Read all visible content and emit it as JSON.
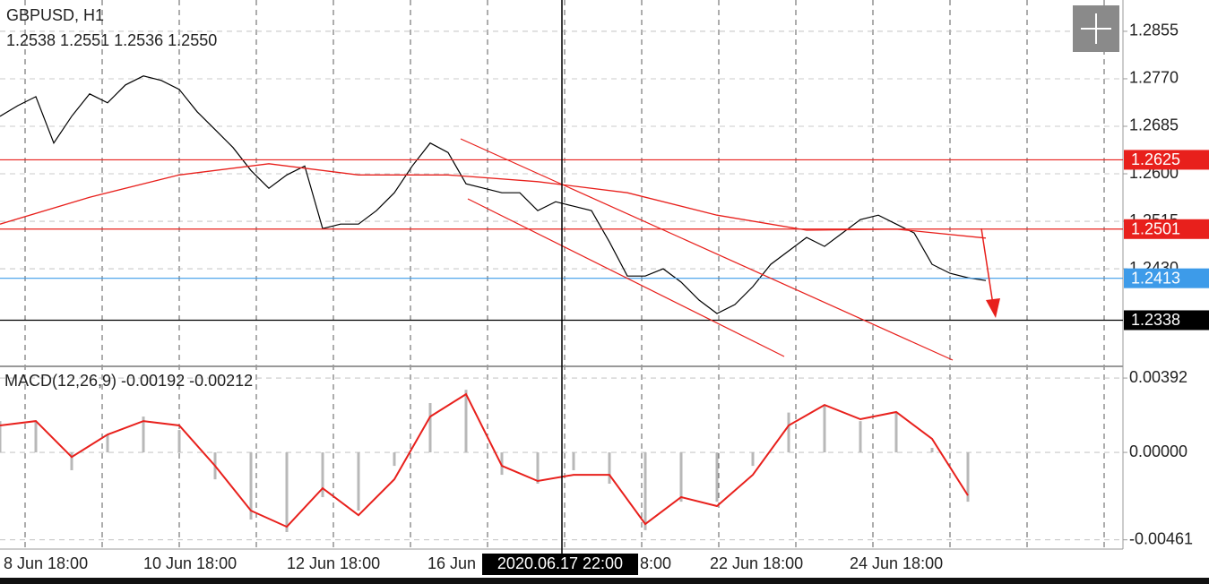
{
  "chart_data": [
    {
      "type": "line",
      "title": "GBPUSD, H1",
      "subtitle": "1.2538 1.2551 1.2536 1.2550",
      "series": [
        {
          "color": "#000000",
          "values": [
            1.2703,
            1.2722,
            1.2738,
            1.2655,
            1.2703,
            1.2743,
            1.2727,
            1.2759,
            1.2775,
            1.2767,
            1.2751,
            1.2711,
            1.2679,
            1.2647,
            1.2606,
            1.2574,
            1.2598,
            1.2614,
            1.2502,
            1.251,
            1.251,
            1.2534,
            1.2566,
            1.2614,
            1.2655,
            1.2638,
            1.2582,
            1.2574,
            1.2566,
            1.2566,
            1.2534,
            1.255,
            1.2542,
            1.2534,
            1.2478,
            1.2417,
            1.2417,
            1.243,
            1.2406,
            1.2374,
            1.235,
            1.2366,
            1.2398,
            1.2438,
            1.2462,
            1.2486,
            1.247,
            1.2494,
            1.2518,
            1.2526,
            1.251,
            1.2494,
            1.2438,
            1.2422,
            1.2414,
            1.2409
          ]
        },
        {
          "color": "#e8201c",
          "values": [
            1.251,
            1.2558,
            1.2598,
            1.2618,
            1.2598,
            1.2598,
            1.2586,
            1.2566,
            1.2526,
            1.2499,
            1.2501,
            1.2485
          ]
        }
      ],
      "ylim": [
        1.2257,
        1.2911
      ],
      "yticks": [
        1.2855,
        {
          "value": 1.277,
          "label": "1.2770"
        },
        1.2685,
        {
          "value": 1.26,
          "label": "1.2600"
        },
        1.2515,
        {
          "value": 1.243,
          "label": "1.2430"
        }
      ],
      "grid": true,
      "levels": [
        {
          "value": 1.2625,
          "color": "#e8201c"
        },
        {
          "value": 1.2501,
          "color": "#e8201c"
        },
        {
          "value": 1.2413,
          "color": "#3d9be9"
        },
        {
          "value": 1.2338,
          "color": "#000000"
        }
      ]
    },
    {
      "type": "bar",
      "title": "MACD(12,26,9) -0.00192 -0.00212",
      "series": [
        {
          "color": "#b8b8b8",
          "values": [
            0.00165,
            0.00165,
            -0.00094,
            0.00094,
            0.00189,
            0.00118,
            -0.00142,
            -0.00354,
            -0.0042,
            -0.00236,
            -0.00307,
            -0.00071,
            0.0026,
            0.0033,
            -0.00118,
            -0.00165,
            -0.00094,
            -0.00165,
            -0.0041,
            -0.0026,
            -0.0026,
            -0.00071,
            0.0021,
            0.0025,
            0.00165,
            0.00213,
            0.00024,
            -0.0026
          ]
        },
        {
          "color": "#e8201c",
          "values": [
            0.00142,
            0.00165,
            -0.00024,
            0.00094,
            0.00165,
            0.00142,
            -0.00071,
            -0.00307,
            -0.00392,
            -0.00189,
            -0.00331,
            -0.00142,
            0.00189,
            0.00307,
            -0.00071,
            -0.00151,
            -0.00118,
            -0.00118,
            -0.00378,
            -0.00236,
            -0.00283,
            -0.00118,
            0.00142,
            0.0025,
            0.00175,
            0.00213,
            0.00071,
            -0.00227
          ]
        }
      ],
      "ylim": [
        -0.00505,
        0.00449
      ],
      "yticks": [
        0.00392,
        {
          "value": 0,
          "label": "0.00000"
        },
        -0.00461
      ],
      "time_labels": [
        "8 Jun 18:00",
        "10 Jun 18:00",
        "12 Jun 18:00",
        "16 Jun",
        "8:00",
        "22 Jun 18:00",
        "24 Jun 18:00"
      ],
      "cursor_time": "2020.06.17 22:00"
    }
  ]
}
